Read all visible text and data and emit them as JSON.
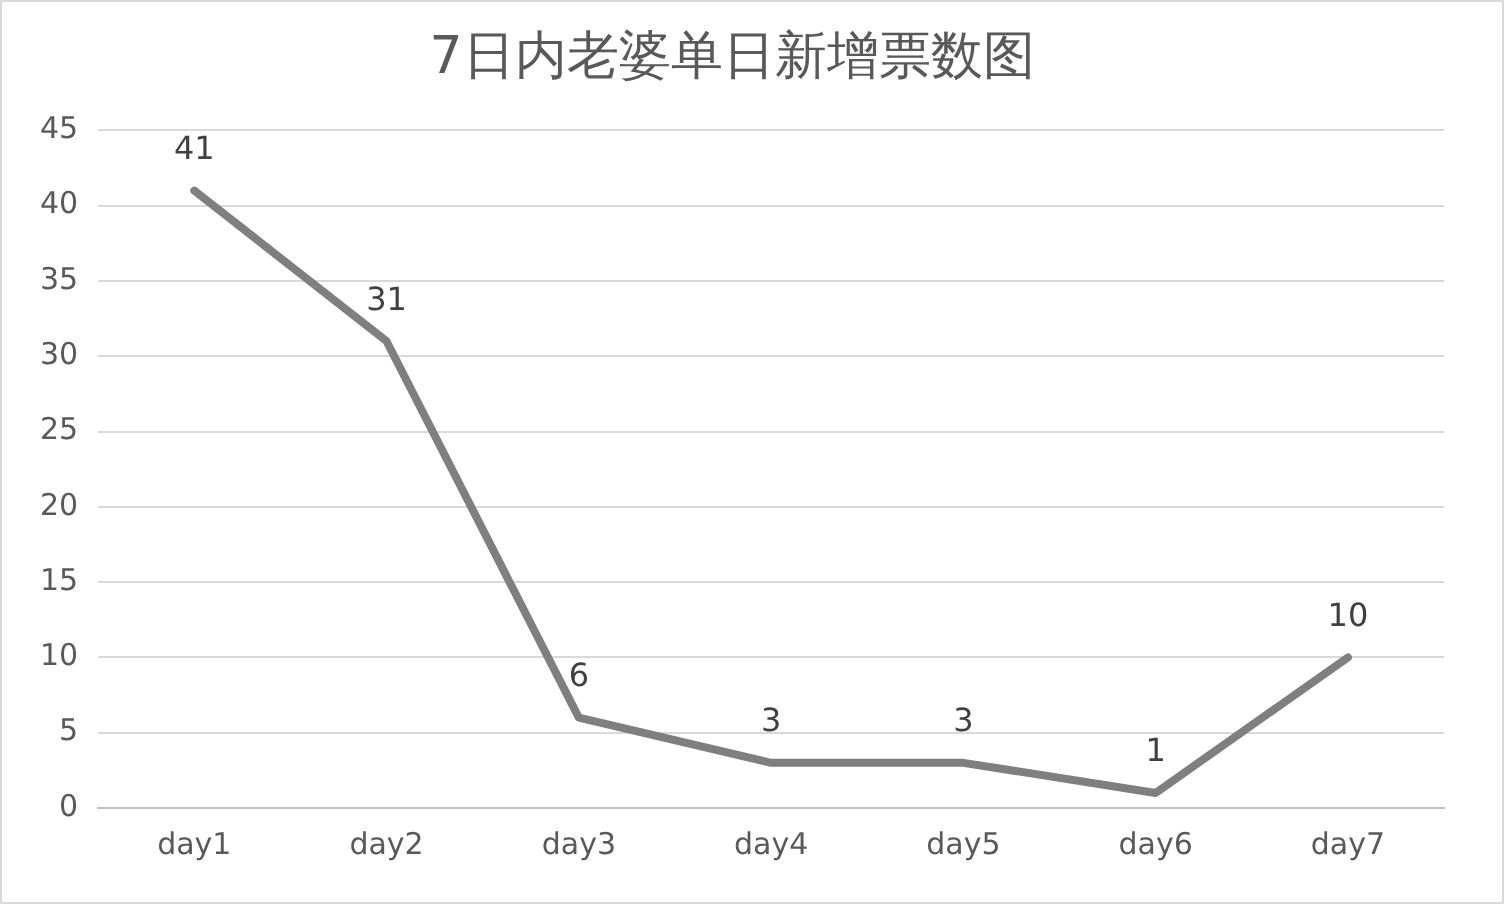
{
  "chart_data": {
    "type": "line",
    "title": "7日内老婆单日新增票数图",
    "categories": [
      "day1",
      "day2",
      "day3",
      "day4",
      "day5",
      "day6",
      "day7"
    ],
    "series": [
      {
        "color": "#7f7f7f",
        "values": [
          41,
          31,
          6,
          3,
          3,
          1,
          10
        ]
      }
    ],
    "ylim": [
      0,
      45
    ],
    "yticks": [
      0,
      5,
      10,
      15,
      20,
      25,
      30,
      35,
      40,
      45
    ],
    "grid": "y",
    "legend": false,
    "marker": "none",
    "line_style": "solid",
    "data_labels": true
  }
}
